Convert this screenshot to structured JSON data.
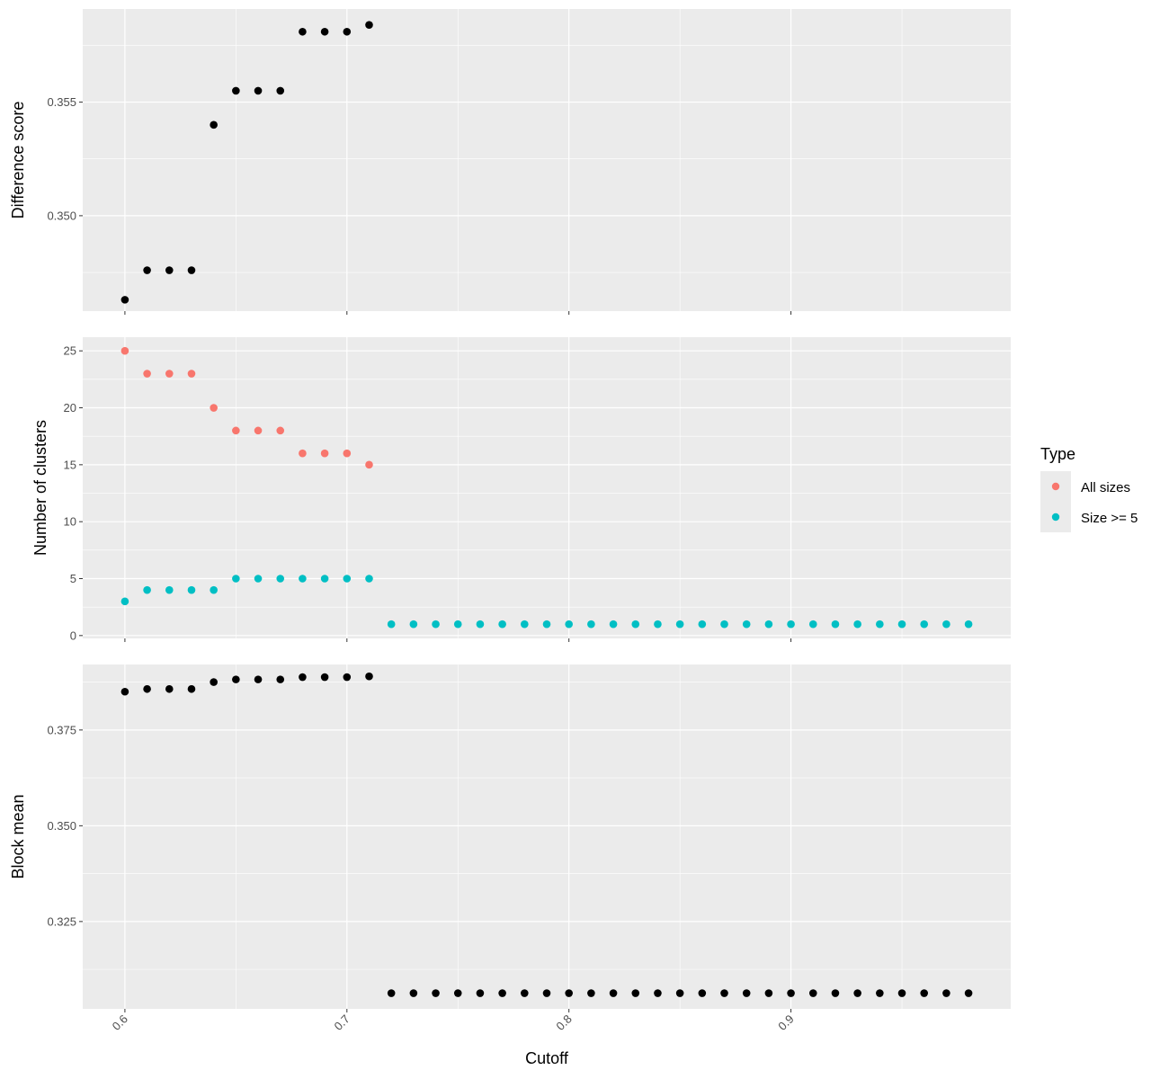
{
  "chart_data": {
    "type": "scatter",
    "xlabel": "Cutoff",
    "xlim": [
      0.581,
      0.999
    ],
    "x_ticks": [
      0.6,
      0.7,
      0.8,
      0.9
    ],
    "x_tick_labels": [
      "0.6",
      "0.7",
      "0.8",
      "0.9"
    ],
    "x_ticks_minor": [
      0.65,
      0.75,
      0.85,
      0.95
    ],
    "legend": {
      "title": "Type",
      "placement": "right",
      "entries": [
        {
          "label": "All sizes",
          "color": "#F8766D"
        },
        {
          "label": "Size >= 5",
          "color": "#00BFC4"
        }
      ]
    },
    "panels": [
      {
        "id": "difference",
        "ylabel": "Difference score",
        "ylim": [
          0.3458,
          0.3591
        ],
        "y_ticks": [
          0.35,
          0.355
        ],
        "y_tick_labels": [
          "0.350",
          "0.355"
        ],
        "y_ticks_minor": [
          0.3475,
          0.3525,
          0.3575
        ],
        "series": [
          {
            "color": "#000000",
            "x": [
              0.6,
              0.61,
              0.62,
              0.63,
              0.64,
              0.65,
              0.66,
              0.67,
              0.68,
              0.69,
              0.7,
              0.71
            ],
            "y": [
              0.3463,
              0.3476,
              0.3476,
              0.3476,
              0.354,
              0.3555,
              0.3555,
              0.3555,
              0.3581,
              0.3581,
              0.3581,
              0.3584
            ]
          }
        ]
      },
      {
        "id": "clusters",
        "ylabel": "Number of clusters",
        "ylim": [
          -0.25,
          26.2
        ],
        "y_ticks": [
          0,
          5,
          10,
          15,
          20,
          25
        ],
        "y_tick_labels": [
          "0",
          "5",
          "10",
          "15",
          "20",
          "25"
        ],
        "y_ticks_minor": [
          2.5,
          7.5,
          12.5,
          17.5,
          22.5
        ],
        "series": [
          {
            "name": "All sizes",
            "color": "#F8766D",
            "x": [
              0.6,
              0.61,
              0.62,
              0.63,
              0.64,
              0.65,
              0.66,
              0.67,
              0.68,
              0.69,
              0.7,
              0.71
            ],
            "y": [
              25,
              23,
              23,
              23,
              20,
              18,
              18,
              18,
              16,
              16,
              16,
              15
            ]
          },
          {
            "name": "Size >= 5",
            "color": "#00BFC4",
            "x": [
              0.6,
              0.61,
              0.62,
              0.63,
              0.64,
              0.65,
              0.66,
              0.67,
              0.68,
              0.69,
              0.7,
              0.71,
              0.72,
              0.73,
              0.74,
              0.75,
              0.76,
              0.77,
              0.78,
              0.79,
              0.8,
              0.81,
              0.82,
              0.83,
              0.84,
              0.85,
              0.86,
              0.87,
              0.88,
              0.89,
              0.9,
              0.91,
              0.92,
              0.93,
              0.94,
              0.95,
              0.96,
              0.97,
              0.98
            ],
            "y": [
              3,
              4,
              4,
              4,
              4,
              5,
              5,
              5,
              5,
              5,
              5,
              5,
              1,
              1,
              1,
              1,
              1,
              1,
              1,
              1,
              1,
              1,
              1,
              1,
              1,
              1,
              1,
              1,
              1,
              1,
              1,
              1,
              1,
              1,
              1,
              1,
              1,
              1,
              1
            ]
          }
        ]
      },
      {
        "id": "block",
        "ylabel": "Block mean",
        "ylim": [
          0.3022,
          0.3921
        ],
        "y_ticks": [
          0.325,
          0.35,
          0.375
        ],
        "y_tick_labels": [
          "0.325",
          "0.350",
          "0.375"
        ],
        "y_ticks_minor": [
          0.3125,
          0.3375,
          0.3625,
          0.3875
        ],
        "series": [
          {
            "color": "#000000",
            "x": [
              0.6,
              0.61,
              0.62,
              0.63,
              0.64,
              0.65,
              0.66,
              0.67,
              0.68,
              0.69,
              0.7,
              0.71,
              0.72,
              0.73,
              0.74,
              0.75,
              0.76,
              0.77,
              0.78,
              0.79,
              0.8,
              0.81,
              0.82,
              0.83,
              0.84,
              0.85,
              0.86,
              0.87,
              0.88,
              0.89,
              0.9,
              0.91,
              0.92,
              0.93,
              0.94,
              0.95,
              0.96,
              0.97,
              0.98
            ],
            "y": [
              0.385,
              0.3857,
              0.3857,
              0.3857,
              0.3875,
              0.3882,
              0.3882,
              0.3882,
              0.3888,
              0.3888,
              0.3888,
              0.389,
              0.3063,
              0.3063,
              0.3063,
              0.3063,
              0.3063,
              0.3063,
              0.3063,
              0.3063,
              0.3063,
              0.3063,
              0.3063,
              0.3063,
              0.3063,
              0.3063,
              0.3063,
              0.3063,
              0.3063,
              0.3063,
              0.3063,
              0.3063,
              0.3063,
              0.3063,
              0.3063,
              0.3063,
              0.3063,
              0.3063,
              0.3063
            ]
          }
        ]
      }
    ]
  }
}
